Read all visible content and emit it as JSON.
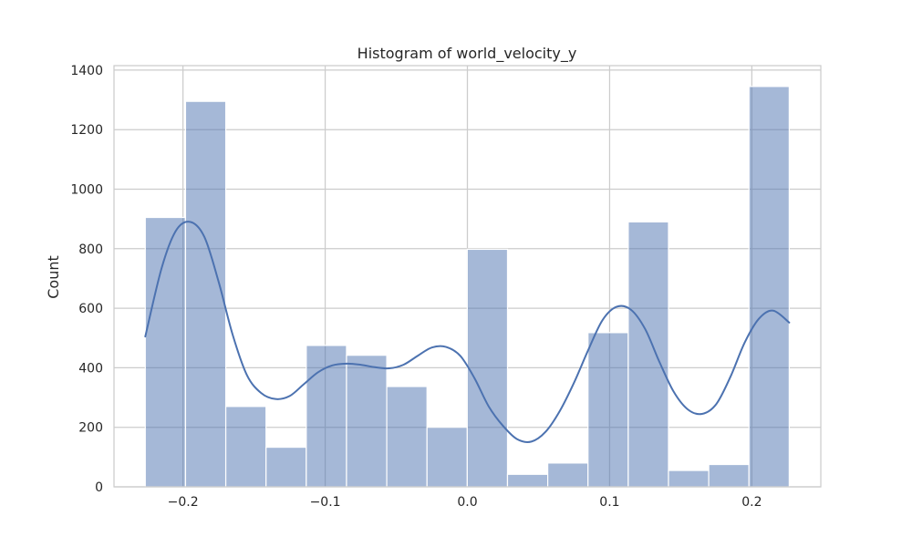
{
  "chart_data": {
    "type": "bar",
    "title": "Histogram of world_velocity_y",
    "xlabel": "",
    "ylabel": "Count",
    "xlim": [
      -0.2485,
      0.2485
    ],
    "ylim": [
      0,
      1415
    ],
    "grid": true,
    "legend": "none",
    "xticks": [
      -0.2,
      -0.1,
      0.0,
      0.1,
      0.2
    ],
    "xtick_labels": [
      "−0.2",
      "−0.1",
      "0.0",
      "0.1",
      "0.2"
    ],
    "yticks": [
      0,
      200,
      400,
      600,
      800,
      1000,
      1200,
      1400
    ],
    "ytick_labels": [
      "0",
      "200",
      "400",
      "600",
      "800",
      "1000",
      "1200",
      "1400"
    ],
    "bin_edges": [
      -0.2265,
      -0.1982,
      -0.1699,
      -0.1416,
      -0.1133,
      -0.085,
      -0.0567,
      -0.0284,
      -0.0001,
      0.0282,
      0.0565,
      0.0848,
      0.1131,
      0.1414,
      0.1697,
      0.198,
      0.2263
    ],
    "counts": [
      905,
      1295,
      270,
      133,
      475,
      442,
      337,
      200,
      798,
      42,
      80,
      518,
      890,
      55,
      75,
      1345
    ],
    "kde": {
      "x": [
        -0.2265,
        -0.215,
        -0.205,
        -0.195,
        -0.185,
        -0.175,
        -0.165,
        -0.155,
        -0.145,
        -0.135,
        -0.125,
        -0.115,
        -0.105,
        -0.095,
        -0.085,
        -0.075,
        -0.065,
        -0.055,
        -0.045,
        -0.035,
        -0.025,
        -0.015,
        -0.005,
        0.005,
        0.015,
        0.025,
        0.035,
        0.045,
        0.055,
        0.065,
        0.075,
        0.085,
        0.095,
        0.105,
        0.115,
        0.125,
        0.135,
        0.145,
        0.155,
        0.165,
        0.175,
        0.185,
        0.195,
        0.205,
        0.215,
        0.2263
      ],
      "y": [
        505,
        735,
        860,
        890,
        840,
        690,
        510,
        375,
        315,
        295,
        305,
        345,
        385,
        408,
        414,
        410,
        402,
        398,
        410,
        440,
        468,
        470,
        440,
        365,
        270,
        205,
        160,
        152,
        185,
        255,
        350,
        460,
        560,
        605,
        595,
        530,
        420,
        320,
        260,
        245,
        278,
        370,
        485,
        565,
        592,
        552
      ]
    },
    "colors": {
      "bar_fill": "#4c72b0",
      "bar_alpha": "0.5",
      "bar_edge": "#ffffff",
      "kde_line": "#4c72b0",
      "grid": "#cccccc",
      "axes_edge": "#cccccc",
      "text": "#262626"
    }
  }
}
